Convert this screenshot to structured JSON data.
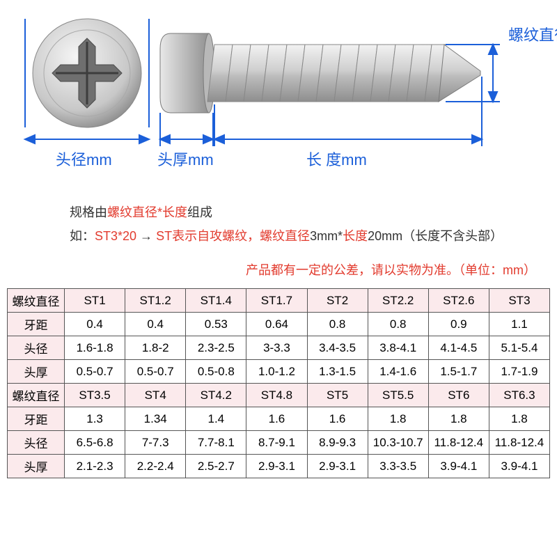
{
  "diagram": {
    "labels": {
      "head_diameter": "头径mm",
      "head_thickness": "头厚mm",
      "length": "长 度mm",
      "thread_diameter": "螺纹直径mm"
    },
    "colors": {
      "dimension_line": "#1b5fd9",
      "label_text": "#1b5fd9",
      "screw_body": "#d8d8d8",
      "screw_highlight": "#f0f0f0",
      "screw_shadow": "#9a9a9a"
    }
  },
  "description": {
    "line1_prefix": "规格由",
    "line1_red1": "螺纹直径*长度",
    "line1_suffix": "组成",
    "line2_prefix": "如：",
    "line2_red1": "ST3*20",
    "line2_arrow": "  →  ",
    "line2_red2": "ST表示自攻螺纹，螺纹直径",
    "line2_black1": "3mm*",
    "line2_red3": "长度",
    "line2_black2": "20mm（长度不含头部）"
  },
  "tolerance_note": "产品都有一定的公差，请以实物为准。（单位：mm）",
  "table": {
    "row_headers": [
      "螺纹直径",
      "牙距",
      "头径",
      "头厚"
    ],
    "group1": {
      "sizes": [
        "ST1",
        "ST1.2",
        "ST1.4",
        "ST1.7",
        "ST2",
        "ST2.2",
        "ST2.6",
        "ST3"
      ],
      "pitch": [
        "0.4",
        "0.4",
        "0.53",
        "0.64",
        "0.8",
        "0.8",
        "0.9",
        "1.1"
      ],
      "head_d": [
        "1.6-1.8",
        "1.8-2",
        "2.3-2.5",
        "3-3.3",
        "3.4-3.5",
        "3.8-4.1",
        "4.1-4.5",
        "5.1-5.4"
      ],
      "head_t": [
        "0.5-0.7",
        "0.5-0.7",
        "0.5-0.8",
        "1.0-1.2",
        "1.3-1.5",
        "1.4-1.6",
        "1.5-1.7",
        "1.7-1.9"
      ]
    },
    "group2": {
      "sizes": [
        "ST3.5",
        "ST4",
        "ST4.2",
        "ST4.8",
        "ST5",
        "ST5.5",
        "ST6",
        "ST6.3"
      ],
      "pitch": [
        "1.3",
        "1.34",
        "1.4",
        "1.6",
        "1.6",
        "1.8",
        "1.8",
        "1.8"
      ],
      "head_d": [
        "6.5-6.8",
        "7-7.3",
        "7.7-8.1",
        "8.7-9.1",
        "8.9-9.3",
        "10.3-10.7",
        "11.8-12.4",
        "11.8-12.4"
      ],
      "head_t": [
        "2.1-2.3",
        "2.2-2.4",
        "2.5-2.7",
        "2.9-3.1",
        "2.9-3.1",
        "3.3-3.5",
        "3.9-4.1",
        "3.9-4.1"
      ]
    }
  }
}
